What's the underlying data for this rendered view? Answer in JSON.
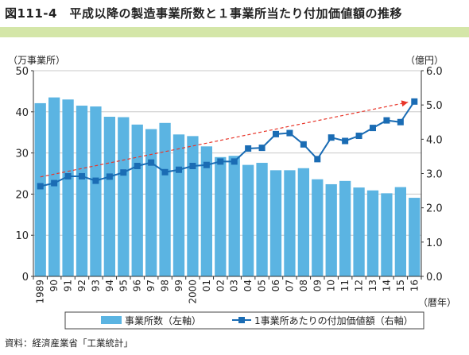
{
  "page": {
    "title": "図111-4　平成以降の製造事業所数と１事業所当たり付加価値額の推移",
    "source": "資料：経済産業省「工業統計」"
  },
  "chart_data": {
    "type": "bar+line",
    "categories": [
      "1989",
      "90",
      "91",
      "92",
      "93",
      "94",
      "95",
      "96",
      "97",
      "98",
      "99",
      "2000",
      "01",
      "02",
      "03",
      "04",
      "05",
      "06",
      "07",
      "08",
      "09",
      "10",
      "11",
      "12",
      "13",
      "14",
      "15",
      "16"
    ],
    "left_axis": {
      "label": "（万事業所）",
      "range": [
        0,
        50
      ],
      "ticks": [
        "0",
        "10",
        "20",
        "30",
        "40",
        "50"
      ]
    },
    "right_axis": {
      "label": "（億円）",
      "range": [
        0,
        6
      ],
      "ticks": [
        "0.0",
        "1.0",
        "2.0",
        "3.0",
        "4.0",
        "5.0",
        "6.0"
      ]
    },
    "x_axis_unit": "（暦年）",
    "series": [
      {
        "name": "事業所数（左軸）",
        "type": "bar",
        "axis": "left",
        "color": "#5bb4e2",
        "values": [
          42.1,
          43.5,
          43.0,
          41.5,
          41.3,
          38.8,
          38.7,
          36.9,
          35.8,
          37.3,
          34.5,
          34.1,
          31.6,
          29.0,
          29.3,
          27.1,
          27.6,
          25.8,
          25.8,
          26.3,
          23.6,
          22.4,
          23.2,
          21.6,
          20.9,
          20.2,
          21.7,
          19.1
        ]
      },
      {
        "name": "1事業所あたりの付加価値額（右軸）",
        "type": "line",
        "axis": "right",
        "color": "#1a6cb4",
        "values": [
          2.63,
          2.72,
          2.92,
          2.92,
          2.79,
          2.91,
          3.03,
          3.22,
          3.32,
          3.04,
          3.11,
          3.22,
          3.25,
          3.35,
          3.35,
          3.73,
          3.75,
          4.15,
          4.18,
          3.85,
          3.42,
          4.05,
          3.95,
          4.1,
          4.33,
          4.55,
          4.5,
          5.1
        ]
      }
    ],
    "trend_line": {
      "color": "#e8362a",
      "from": 2.9,
      "to": 5.08
    },
    "legend_position": "bottom",
    "grid": "horizontal"
  }
}
